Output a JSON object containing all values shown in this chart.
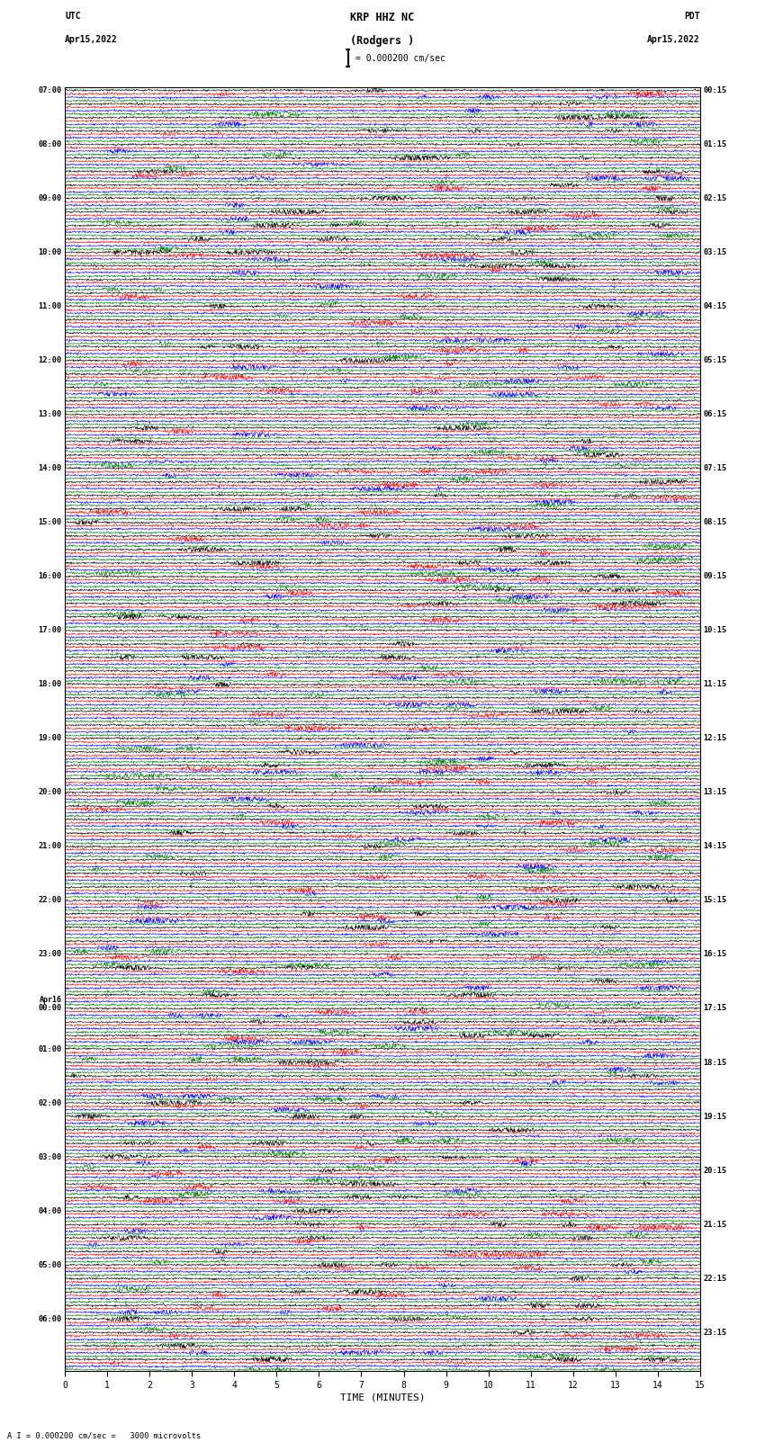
{
  "title_line1": "KRP HHZ NC",
  "title_line2": "(Rodgers )",
  "scale_label": "= 0.000200 cm/sec",
  "bottom_label": "A I = 0.000200 cm/sec =   3000 microvolts",
  "xlabel": "TIME (MINUTES)",
  "left_header": "UTC",
  "left_date": "Apr15,2022",
  "right_header": "PDT",
  "right_date": "Apr15,2022",
  "left_times_utc": [
    "07:00",
    "",
    "",
    "",
    "08:00",
    "",
    "",
    "",
    "09:00",
    "",
    "",
    "",
    "10:00",
    "",
    "",
    "",
    "11:00",
    "",
    "",
    "",
    "12:00",
    "",
    "",
    "",
    "13:00",
    "",
    "",
    "",
    "14:00",
    "",
    "",
    "",
    "15:00",
    "",
    "",
    "",
    "16:00",
    "",
    "",
    "",
    "17:00",
    "",
    "",
    "",
    "18:00",
    "",
    "",
    "",
    "19:00",
    "",
    "",
    "",
    "20:00",
    "",
    "",
    "",
    "21:00",
    "",
    "",
    "",
    "22:00",
    "",
    "",
    "",
    "23:00",
    "",
    "",
    "",
    "Apr16",
    "00:00",
    "",
    "",
    "01:00",
    "",
    "",
    "",
    "02:00",
    "",
    "",
    "",
    "03:00",
    "",
    "",
    "",
    "04:00",
    "",
    "",
    "",
    "05:00",
    "",
    "",
    "",
    "06:00",
    "",
    ""
  ],
  "right_times_pdt": [
    "00:15",
    "",
    "",
    "",
    "01:15",
    "",
    "",
    "",
    "02:15",
    "",
    "",
    "",
    "03:15",
    "",
    "",
    "",
    "04:15",
    "",
    "",
    "",
    "05:15",
    "",
    "",
    "",
    "06:15",
    "",
    "",
    "",
    "07:15",
    "",
    "",
    "",
    "08:15",
    "",
    "",
    "",
    "09:15",
    "",
    "",
    "",
    "10:15",
    "",
    "",
    "",
    "11:15",
    "",
    "",
    "",
    "12:15",
    "",
    "",
    "",
    "13:15",
    "",
    "",
    "",
    "14:15",
    "",
    "",
    "",
    "15:15",
    "",
    "",
    "",
    "16:15",
    "",
    "",
    "",
    "17:15",
    "",
    "",
    "",
    "18:15",
    "",
    "",
    "",
    "19:15",
    "",
    "",
    "",
    "20:15",
    "",
    "",
    "",
    "21:15",
    "",
    "",
    "",
    "22:15",
    "",
    "",
    "",
    "23:15",
    "",
    ""
  ],
  "colors": [
    "black",
    "red",
    "blue",
    "green"
  ],
  "num_rows": 95,
  "traces_per_row": 4,
  "x_min": 0,
  "x_max": 15,
  "x_ticks": [
    0,
    1,
    2,
    3,
    4,
    5,
    6,
    7,
    8,
    9,
    10,
    11,
    12,
    13,
    14,
    15
  ],
  "background_color": "white",
  "figwidth": 8.5,
  "figheight": 16.13,
  "dpi": 100
}
